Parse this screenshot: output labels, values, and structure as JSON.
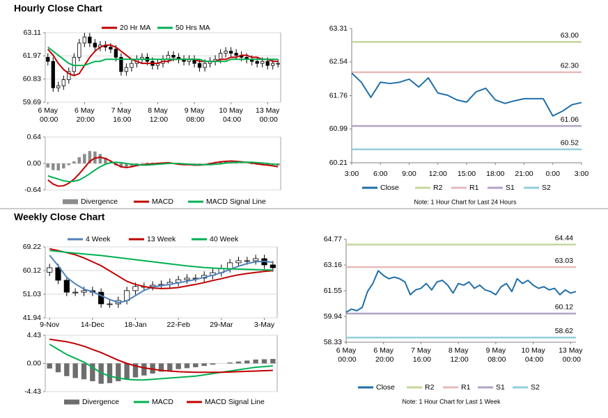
{
  "headings": [
    "Hourly Close Chart",
    "Weekly Close Chart"
  ],
  "chart_data": [
    {
      "type": "candlestick",
      "categories": [
        "6 May 00:00",
        null,
        null,
        null,
        null,
        null,
        null,
        "6 May 20:00",
        null,
        null,
        null,
        null,
        null,
        null,
        "7 May 16:00",
        null,
        null,
        null,
        null,
        null,
        null,
        "8 May 12:00",
        null,
        null,
        null,
        null,
        null,
        null,
        "9 May 08:00",
        null,
        null,
        null,
        null,
        null,
        null,
        "10 May 04:00",
        null,
        null,
        null,
        null,
        null,
        null,
        "13 May 00:00",
        null,
        null
      ],
      "candles": {
        "open": [
          61.9,
          61.7,
          60.4,
          60.5,
          60.8,
          61.2,
          61.9,
          62.6,
          62.9,
          62.6,
          62.4,
          62.5,
          62.4,
          62.3,
          61.9,
          61.2,
          61.4,
          61.6,
          61.8,
          61.9,
          61.7,
          61.5,
          61.6,
          61.8,
          62.0,
          61.9,
          61.8,
          61.7,
          61.8,
          61.6,
          61.4,
          61.6,
          61.7,
          61.8,
          62.1,
          62.2,
          62.1,
          62.0,
          61.9,
          61.8,
          61.7,
          61.6,
          61.7,
          61.5,
          61.6
        ],
        "high": [
          62.1,
          61.9,
          60.7,
          61.0,
          61.4,
          62.1,
          62.8,
          63.1,
          63.1,
          62.8,
          62.7,
          62.7,
          62.6,
          62.5,
          62.1,
          61.6,
          61.8,
          62.0,
          62.1,
          62.1,
          61.9,
          61.8,
          62.0,
          62.2,
          62.2,
          62.1,
          62.0,
          62.0,
          62.0,
          61.8,
          61.8,
          61.9,
          62.0,
          62.3,
          62.4,
          62.4,
          62.3,
          62.2,
          62.1,
          62.0,
          61.9,
          61.9,
          61.9,
          61.8,
          61.8
        ],
        "low": [
          61.5,
          60.2,
          60.2,
          60.3,
          60.6,
          61.0,
          61.7,
          62.4,
          62.4,
          62.2,
          62.2,
          62.2,
          62.1,
          61.7,
          61.0,
          61.0,
          61.2,
          61.4,
          61.6,
          61.5,
          61.3,
          61.3,
          61.4,
          61.6,
          61.7,
          61.6,
          61.5,
          61.5,
          61.4,
          61.2,
          61.2,
          61.4,
          61.5,
          61.6,
          61.9,
          61.9,
          61.8,
          61.7,
          61.6,
          61.5,
          61.4,
          61.4,
          61.3,
          61.3,
          61.4
        ],
        "close": [
          61.7,
          60.4,
          60.5,
          60.8,
          61.2,
          61.9,
          62.6,
          62.9,
          62.6,
          62.4,
          62.5,
          62.4,
          62.3,
          61.9,
          61.2,
          61.4,
          61.6,
          61.8,
          61.9,
          61.7,
          61.5,
          61.6,
          61.8,
          62.0,
          61.9,
          61.8,
          61.7,
          61.8,
          61.6,
          61.4,
          61.6,
          61.7,
          61.8,
          62.1,
          62.2,
          62.1,
          62.0,
          61.9,
          61.8,
          61.7,
          61.6,
          61.7,
          61.5,
          61.6,
          61.6
        ]
      },
      "series": [
        {
          "name": "20 Hr MA",
          "color": "#c00000",
          "values": [
            62.3,
            62.0,
            61.6,
            61.3,
            61.1,
            61.0,
            61.1,
            61.5,
            61.9,
            62.2,
            62.4,
            62.5,
            62.5,
            62.4,
            62.2,
            62.0,
            61.8,
            61.7,
            61.6,
            61.6,
            61.6,
            61.6,
            61.7,
            61.7,
            61.8,
            61.8,
            61.8,
            61.8,
            61.8,
            61.7,
            61.7,
            61.7,
            61.7,
            61.8,
            61.8,
            61.9,
            61.9,
            62.0,
            62.0,
            61.9,
            61.9,
            61.8,
            61.8,
            61.7,
            61.7
          ]
        },
        {
          "name": "50 Hrs MA",
          "color": "#00b050",
          "values": [
            62.4,
            62.2,
            62.0,
            61.8,
            61.6,
            61.5,
            61.5,
            61.5,
            61.6,
            61.7,
            61.7,
            61.8,
            61.8,
            61.8,
            61.8,
            61.8,
            61.8,
            61.8,
            61.8,
            61.8,
            61.8,
            61.8,
            61.8,
            61.8,
            61.8,
            61.8,
            61.8,
            61.8,
            61.8,
            61.8,
            61.7,
            61.7,
            61.7,
            61.7,
            61.7,
            61.8,
            61.8,
            61.8,
            61.8,
            61.8,
            61.8,
            61.8,
            61.8,
            61.8,
            61.8
          ]
        }
      ],
      "ylim": [
        59.69,
        63.11
      ],
      "yticks": [
        63.11,
        61.97,
        60.83,
        59.69
      ],
      "grid": true
    },
    {
      "type": "macd",
      "series": [
        {
          "name": "Divergence",
          "type": "bar",
          "color": "#8c8c8c",
          "values": [
            -0.1,
            -0.16,
            -0.17,
            -0.12,
            -0.04,
            0.05,
            0.15,
            0.23,
            0.3,
            0.29,
            0.23,
            0.14,
            0.04,
            -0.05,
            -0.1,
            -0.1,
            -0.06,
            -0.02,
            0.01,
            0.02,
            0.02,
            0.02,
            0.02,
            0.02,
            0,
            -0.02,
            -0.02,
            -0.01,
            -0.01,
            -0.01,
            0,
            0.02,
            0.04,
            0.05,
            0.04,
            0.04,
            0.02,
            0.01,
            0,
            -0.02,
            -0.03,
            -0.04,
            -0.04,
            -0.04,
            -0.05
          ]
        },
        {
          "name": "MACD",
          "type": "line",
          "color": "#c00000",
          "values": [
            -0.4,
            -0.5,
            -0.55,
            -0.54,
            -0.48,
            -0.38,
            -0.25,
            -0.1,
            0.05,
            0.13,
            0.15,
            0.12,
            0.06,
            -0.02,
            -0.08,
            -0.1,
            -0.08,
            -0.05,
            -0.03,
            -0.02,
            -0.01,
            0,
            0.01,
            0.02,
            0,
            -0.02,
            -0.03,
            -0.03,
            -0.04,
            -0.04,
            -0.03,
            -0.01,
            0.02,
            0.04,
            0.05,
            0.06,
            0.05,
            0.04,
            0.03,
            0.01,
            -0.01,
            -0.03,
            -0.04,
            -0.06,
            -0.08
          ]
        },
        {
          "name": "MACD Signal Line",
          "type": "line",
          "color": "#00b050",
          "values": [
            -0.3,
            -0.34,
            -0.38,
            -0.42,
            -0.44,
            -0.43,
            -0.4,
            -0.33,
            -0.25,
            -0.16,
            -0.08,
            -0.02,
            0.02,
            0.03,
            0.02,
            0,
            -0.02,
            -0.03,
            -0.04,
            -0.04,
            -0.03,
            -0.02,
            -0.01,
            0,
            0,
            0,
            -0.01,
            -0.02,
            -0.03,
            -0.03,
            -0.03,
            -0.03,
            -0.02,
            -0.01,
            0.01,
            0.02,
            0.03,
            0.03,
            0.03,
            0.03,
            0.02,
            0.01,
            0,
            -0.02,
            -0.03
          ]
        }
      ],
      "ylim": [
        -0.64,
        0.64
      ],
      "yticks": [
        0.64,
        {
          "value": 0,
          "label": "0.00"
        },
        -0.64
      ],
      "grid": true
    },
    {
      "type": "line",
      "categories": [
        "3:00",
        null,
        null,
        "6:00",
        null,
        null,
        "9:00",
        null,
        null,
        "12:00",
        null,
        null,
        "15:00",
        null,
        null,
        "18:00",
        null,
        null,
        "21:00",
        null,
        null,
        "0:00",
        null,
        null,
        "3:00"
      ],
      "series": [
        {
          "name": "Close",
          "color": "#1f6ea8",
          "values": [
            62.28,
            62.07,
            61.72,
            62.07,
            62.04,
            62.07,
            62.14,
            61.96,
            62.17,
            61.82,
            61.77,
            61.66,
            61.61,
            61.85,
            61.93,
            61.66,
            61.58,
            61.64,
            61.69,
            61.69,
            61.69,
            61.29,
            61.4,
            61.55,
            61.6
          ]
        }
      ],
      "levels": {
        "names": [
          "R2",
          "R1",
          "S1",
          "S2"
        ],
        "colors": [
          "#c3d69b",
          "#e6b9b8",
          "#b3a2c7",
          "#93cddd"
        ],
        "values": [
          63,
          62.3,
          61.06,
          60.52
        ],
        "value_labels": [
          "63.00",
          "62.30",
          "61.06",
          "60.52"
        ]
      },
      "ylim": [
        60.21,
        63.31
      ],
      "yticks": [
        63.31,
        62.54,
        61.76,
        60.99,
        60.21
      ],
      "grid": false,
      "note": "Note: 1 Hour Chart for Last 24 Hours"
    },
    {
      "type": "candlestick",
      "categories": [
        "9-Nov",
        null,
        null,
        null,
        null,
        "14-Dec",
        null,
        null,
        null,
        null,
        "18-Jan",
        null,
        null,
        null,
        null,
        "22-Feb",
        null,
        null,
        null,
        null,
        "29-Mar",
        null,
        null,
        null,
        null,
        "3-May",
        null
      ],
      "candles": {
        "open": [
          59.5,
          61.2,
          56.4,
          51.8,
          51.8,
          52.4,
          51.8,
          47.3,
          47.3,
          48.6,
          52.4,
          54.0,
          54.0,
          54.5,
          54.8,
          55.6,
          56.6,
          57.2,
          57.2,
          58.3,
          59.3,
          60.9,
          63.1,
          63.9,
          63.9,
          64.7,
          62.3
        ],
        "high": [
          62.7,
          62.7,
          57.9,
          53.3,
          53.9,
          53.9,
          53.3,
          48.8,
          50.1,
          53.9,
          55.5,
          55.5,
          56.0,
          56.3,
          57.1,
          58.1,
          58.7,
          58.7,
          59.8,
          60.8,
          62.4,
          64.6,
          65.4,
          65.4,
          66.2,
          66.2,
          63.8
        ],
        "low": [
          58.0,
          54.9,
          50.3,
          50.3,
          50.3,
          50.3,
          45.8,
          45.8,
          45.8,
          47.1,
          50.9,
          52.5,
          52.5,
          53.0,
          53.3,
          54.1,
          55.1,
          55.7,
          55.7,
          56.8,
          57.8,
          59.4,
          61.6,
          62.4,
          62.4,
          60.8,
          59.7
        ],
        "close": [
          61.2,
          56.4,
          51.8,
          51.8,
          52.4,
          51.8,
          47.3,
          47.3,
          48.6,
          52.4,
          54.0,
          54.0,
          54.5,
          54.8,
          55.6,
          56.6,
          57.2,
          57.2,
          58.3,
          59.3,
          60.9,
          63.1,
          63.9,
          63.9,
          64.7,
          62.3,
          61.2
        ]
      },
      "series": [
        {
          "name": "4 Week",
          "color": "#4f81bd",
          "values": [
            66.0,
            62.0,
            57.5,
            55.0,
            53.0,
            52.0,
            50.5,
            49.0,
            47.8,
            48.5,
            50.5,
            52.5,
            53.8,
            54.3,
            54.8,
            55.4,
            56.0,
            56.7,
            57.5,
            58.3,
            59.3,
            60.5,
            61.8,
            62.8,
            63.5,
            63.7,
            63.3
          ]
        },
        {
          "name": "13 Week",
          "color": "#c00000",
          "values": [
            68.5,
            67.8,
            67.0,
            66.2,
            65.0,
            63.5,
            62.0,
            60.0,
            58.0,
            56.0,
            54.8,
            54.0,
            53.4,
            53.2,
            53.3,
            53.6,
            54.2,
            54.8,
            55.5,
            56.3,
            57.0,
            57.8,
            58.5,
            59.0,
            59.4,
            59.8,
            60.1
          ]
        },
        {
          "name": "40 Week",
          "color": "#00b050",
          "values": [
            67.8,
            67.5,
            67.1,
            66.8,
            66.5,
            66.2,
            65.9,
            65.5,
            65.1,
            64.7,
            64.3,
            63.9,
            63.5,
            63.1,
            62.7,
            62.3,
            61.9,
            61.6,
            61.3,
            61.1,
            60.9,
            60.8,
            60.7,
            60.6,
            60.5,
            60.4,
            60.3
          ]
        }
      ],
      "ylim": [
        41.94,
        69.22
      ],
      "yticks": [
        69.22,
        60.12,
        51.03,
        41.94
      ],
      "grid": true
    },
    {
      "type": "macd",
      "series": [
        {
          "name": "Divergence",
          "type": "bar",
          "color": "#6d6d6d",
          "values": [
            -0.8,
            -1.4,
            -2.0,
            -2.3,
            -2.5,
            -2.8,
            -3.2,
            -3.1,
            -2.8,
            -2.5,
            -2.2,
            -1.9,
            -1.6,
            -1.3,
            -1.1,
            -0.9,
            -0.75,
            -0.6,
            -0.4,
            -0.2,
            0,
            0.15,
            0.3,
            0.45,
            0.6,
            0.65,
            0.7
          ]
        },
        {
          "name": "MACD",
          "type": "line",
          "color": "#00b050",
          "values": [
            3.0,
            2.2,
            1.4,
            0.8,
            0.2,
            -0.6,
            -1.5,
            -2.0,
            -2.3,
            -2.5,
            -2.6,
            -2.6,
            -2.5,
            -2.4,
            -2.3,
            -2.2,
            -2.1,
            -2.0,
            -1.8,
            -1.6,
            -1.4,
            -1.2,
            -1.0,
            -0.8,
            -0.6,
            -0.5,
            -0.4
          ]
        },
        {
          "name": "MACD Signal Line",
          "type": "line",
          "color": "#c00000",
          "values": [
            3.8,
            3.6,
            3.4,
            3.1,
            2.7,
            2.2,
            1.7,
            1.1,
            0.5,
            0,
            -0.4,
            -0.7,
            -0.9,
            -1.1,
            -1.2,
            -1.3,
            -1.35,
            -1.4,
            -1.4,
            -1.4,
            -1.4,
            -1.35,
            -1.3,
            -1.25,
            -1.2,
            -1.15,
            -1.1
          ]
        }
      ],
      "ylim": [
        -4.43,
        4.43
      ],
      "yticks": [
        4.43,
        {
          "value": 0,
          "label": "0.00"
        },
        -4.43
      ],
      "grid": true
    },
    {
      "type": "line",
      "categories": [
        "6 May 00:00",
        null,
        null,
        null,
        null,
        null,
        null,
        "6 May 20:00",
        null,
        null,
        null,
        null,
        null,
        null,
        "7 May 16:00",
        null,
        null,
        null,
        null,
        null,
        null,
        "8 May 12:00",
        null,
        null,
        null,
        null,
        null,
        null,
        "9 May 08:00",
        null,
        null,
        null,
        null,
        null,
        null,
        "10 May 04:00",
        null,
        null,
        null,
        null,
        null,
        null,
        "13 May 00:00",
        null
      ],
      "series": [
        {
          "name": "Close",
          "color": "#1f6ea8",
          "values": [
            60.2,
            60.4,
            60.3,
            60.5,
            61.5,
            62.0,
            62.8,
            62.5,
            62.3,
            62.4,
            62.3,
            62.1,
            61.3,
            61.6,
            61.7,
            62.0,
            61.6,
            62.1,
            62.2,
            61.9,
            61.4,
            62.0,
            61.9,
            62.1,
            61.7,
            61.9,
            61.6,
            61.5,
            61.3,
            61.8,
            62.0,
            61.5,
            62.3,
            62.0,
            62.2,
            61.9,
            61.7,
            61.8,
            61.6,
            61.7,
            61.3,
            61.6,
            61.4,
            61.5
          ]
        }
      ],
      "levels": {
        "names": [
          "R2",
          "R1",
          "S1",
          "S2"
        ],
        "colors": [
          "#c3d69b",
          "#e6b9b8",
          "#b3a2c7",
          "#93cddd"
        ],
        "values": [
          64.44,
          63.03,
          60.12,
          58.62
        ],
        "value_labels": [
          "64.44",
          "63.03",
          "60.12",
          "58.62"
        ]
      },
      "ylim": [
        58.33,
        64.77
      ],
      "yticks": [
        64.77,
        63.16,
        61.55,
        59.94,
        58.33
      ],
      "grid": false,
      "note": "Note: 1 Hour Chart for Last 1 Week"
    }
  ]
}
